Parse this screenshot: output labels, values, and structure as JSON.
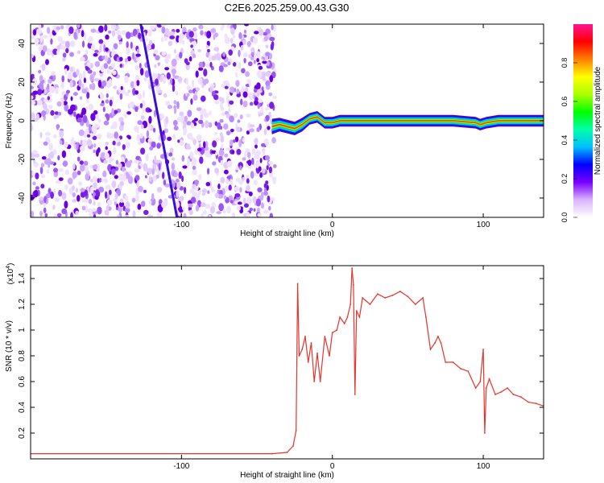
{
  "figure": {
    "title": "C2E6.2025.259.00.43.G30"
  },
  "chart_data": [
    {
      "type": "heatmap",
      "xlabel": "Height of straight line (km)",
      "ylabel": "Frequency (Hz)",
      "xlim": [
        -200,
        140
      ],
      "ylim": [
        -50,
        50
      ],
      "x_ticks": [
        -100,
        0,
        100
      ],
      "x_tick_labels": [
        "-100",
        "0",
        "100"
      ],
      "y_ticks": [
        -40,
        -20,
        0,
        20,
        40
      ],
      "y_tick_labels": [
        "-40",
        "-20",
        "0",
        "20",
        "40"
      ],
      "noise_region_x": [
        -200,
        -38
      ],
      "streak": {
        "x": [
          -127,
          -103
        ],
        "y": [
          50,
          -50
        ]
      },
      "signal_band": {
        "x": [
          -40,
          -35,
          -30,
          -25,
          -20,
          -15,
          -10,
          -5,
          0,
          5,
          10,
          20,
          40,
          60,
          80,
          95,
          98,
          102,
          110,
          125,
          140
        ],
        "center": [
          -3,
          -2,
          -3,
          -4,
          -2,
          1,
          2,
          -1,
          -1,
          0,
          0,
          0,
          0,
          0,
          0,
          -1,
          -2,
          -1,
          0,
          0,
          0
        ],
        "width": [
          8,
          7,
          7,
          7,
          7,
          6,
          6,
          6,
          6,
          6,
          6,
          6,
          6,
          6,
          6,
          6,
          6,
          6,
          6,
          6,
          6
        ]
      },
      "colorbar": {
        "label": "Normalized spectral amplitude",
        "range": [
          0.0,
          1.0
        ],
        "ticks": [
          0.0,
          0.2,
          0.4,
          0.6,
          0.8
        ],
        "tick_labels": [
          "0.0",
          "0.2",
          "0.4",
          "0.6",
          "0.8"
        ],
        "colors": [
          "#ffffff",
          "#d9b3ff",
          "#7a00ff",
          "#0000ff",
          "#00bfff",
          "#00ffaa",
          "#00ff00",
          "#aaff00",
          "#ffff00",
          "#ff8000",
          "#ff0000",
          "#ff1493"
        ]
      },
      "grid": false,
      "legend": "none"
    },
    {
      "type": "line",
      "xlabel": "Height of straight line (km)",
      "ylabel": "SNR (10 * v/v)",
      "exponent_label": "(x10",
      "exponent_power": "4",
      "exponent_close": ")",
      "xlim": [
        -200,
        140
      ],
      "ylim": [
        0,
        1.5
      ],
      "x_ticks": [
        -100,
        0,
        100
      ],
      "x_tick_labels": [
        "-100",
        "0",
        "100"
      ],
      "y_ticks": [
        0.2,
        0.4,
        0.6,
        0.8,
        1.0,
        1.2,
        1.4
      ],
      "y_tick_labels": [
        "0.2",
        "0.4",
        "0.6",
        "0.8",
        "1",
        "1.2",
        "1.4"
      ],
      "series": [
        {
          "color": "#e8332a",
          "x": [
            -200,
            -40,
            -30,
            -26,
            -24,
            -23,
            -22,
            -20,
            -18,
            -16,
            -14,
            -12,
            -10,
            -8,
            -5,
            -2,
            0,
            3,
            5,
            8,
            10,
            12,
            13,
            14,
            15,
            16,
            18,
            20,
            25,
            30,
            35,
            40,
            45,
            50,
            55,
            60,
            62,
            65,
            68,
            70,
            72,
            75,
            80,
            85,
            90,
            95,
            98,
            100,
            101,
            102,
            104,
            108,
            112,
            116,
            120,
            125,
            130,
            135,
            140
          ],
          "y": [
            0.04,
            0.04,
            0.05,
            0.1,
            0.22,
            1.36,
            0.8,
            0.85,
            0.95,
            0.75,
            0.9,
            0.6,
            0.82,
            0.6,
            0.95,
            0.8,
            0.98,
            1.0,
            1.1,
            1.05,
            1.1,
            1.2,
            1.48,
            1.35,
            0.5,
            1.15,
            1.1,
            1.25,
            1.2,
            1.28,
            1.25,
            1.27,
            1.3,
            1.26,
            1.2,
            1.25,
            1.1,
            0.85,
            0.9,
            0.95,
            0.9,
            0.75,
            0.75,
            0.7,
            0.68,
            0.55,
            0.6,
            0.85,
            0.2,
            0.55,
            0.62,
            0.5,
            0.52,
            0.55,
            0.5,
            0.48,
            0.44,
            0.43,
            0.41
          ]
        }
      ],
      "grid": false,
      "legend": "none"
    }
  ]
}
